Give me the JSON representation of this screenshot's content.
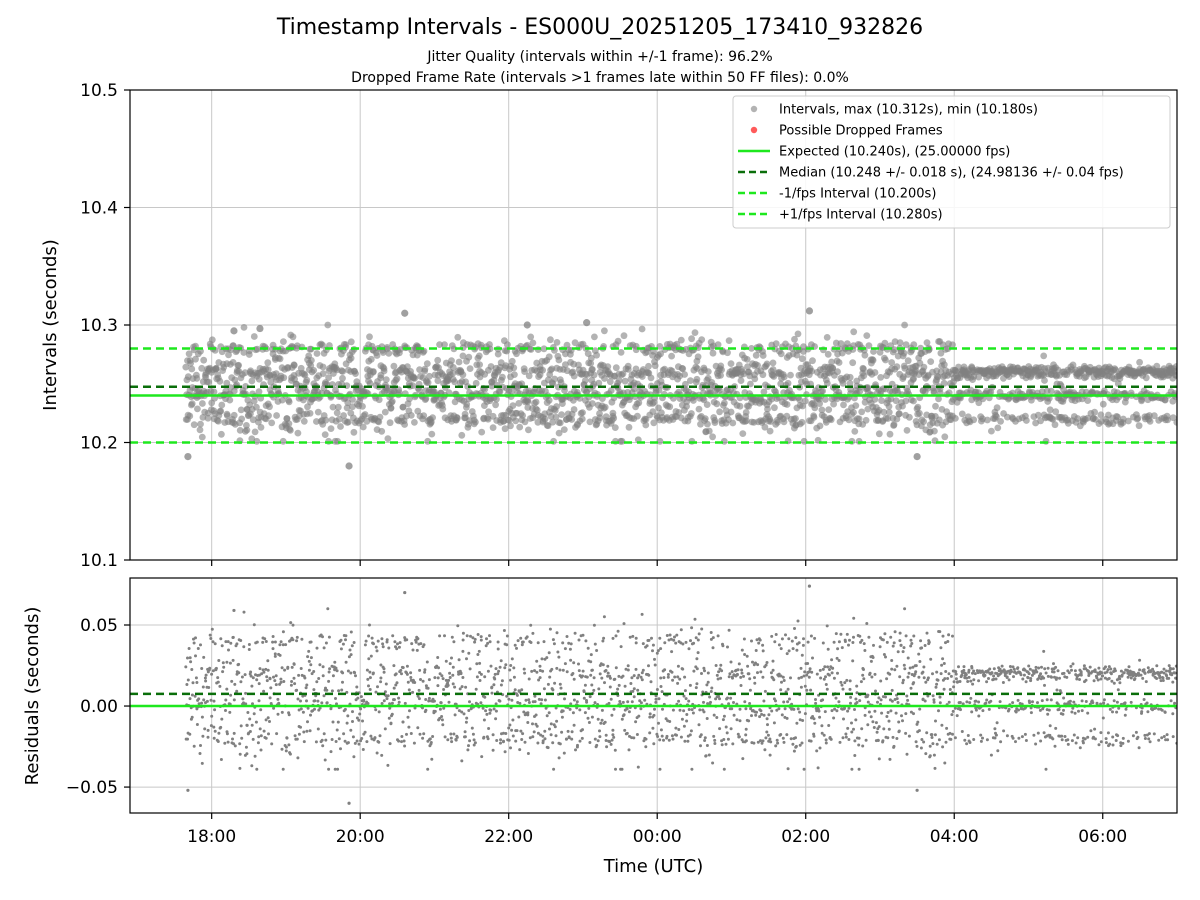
{
  "figure": {
    "title": "Timestamp Intervals - ES000U_20251205_173410_932826",
    "subtitle_jitter": "Jitter Quality (intervals within +/-1 frame): 96.2%",
    "subtitle_dropped": "Dropped Frame Rate (intervals >1 frames late within 50 FF files): 0.0%"
  },
  "colors": {
    "points": "#808080",
    "dropped": "#ff5a5a",
    "expected": "#1ee81e",
    "median": "#0a6e0a",
    "fps_bounds": "#1ee81e",
    "grid": "#c8c8c8"
  },
  "chart_data": [
    {
      "type": "scatter",
      "panel": "intervals",
      "title": "",
      "xlabel": "",
      "ylabel": "Intervals (seconds)",
      "x_unit": "hours since 17:00 UTC",
      "xlim": [
        -0.1,
        14.0
      ],
      "ylim": [
        10.1,
        10.5
      ],
      "yticks": [
        10.1,
        10.2,
        10.3,
        10.4,
        10.5
      ],
      "ytick_labels": [
        "10.1",
        "10.2",
        "10.3",
        "10.4",
        "10.5"
      ],
      "xticks": [
        1,
        3,
        5,
        7,
        9,
        11,
        13
      ],
      "grid": true,
      "legend_position": "top-right",
      "series": [
        {
          "name": "Intervals, max (10.312s), min (10.180s)",
          "kind": "points",
          "x_range": [
            0.65,
            14.0
          ],
          "center": 10.245,
          "spread": 0.024
        },
        {
          "name": "Possible Dropped Frames",
          "kind": "points",
          "values": []
        }
      ],
      "notable_points": [
        {
          "x": 0.68,
          "y": 10.188
        },
        {
          "x": 1.3,
          "y": 10.295
        },
        {
          "x": 1.65,
          "y": 10.297
        },
        {
          "x": 2.85,
          "y": 10.18
        },
        {
          "x": 3.6,
          "y": 10.31
        },
        {
          "x": 5.25,
          "y": 10.3
        },
        {
          "x": 6.05,
          "y": 10.302
        },
        {
          "x": 9.05,
          "y": 10.312
        },
        {
          "x": 10.5,
          "y": 10.188
        }
      ],
      "reference_lines": [
        {
          "label": "Expected (10.240s), (25.00000 fps)",
          "y": 10.24,
          "style": "solid"
        },
        {
          "label": "Median (10.248 +/- 0.018 s), (24.98136 +/- 0.04 fps)",
          "y": 10.2475,
          "style": "dashed"
        },
        {
          "label": "-1/fps Interval (10.200s)",
          "y": 10.2,
          "style": "dashed"
        },
        {
          "label": "+1/fps Interval (10.280s)",
          "y": 10.28,
          "style": "dashed"
        }
      ]
    },
    {
      "type": "scatter",
      "panel": "residuals",
      "title": "",
      "xlabel": "Time (UTC)",
      "ylabel": "Residuals (seconds)",
      "x_unit": "hours since 17:00 UTC",
      "xlim": [
        -0.1,
        14.0
      ],
      "ylim": [
        -0.066,
        0.079
      ],
      "yticks": [
        -0.05,
        0.0,
        0.05
      ],
      "ytick_labels": [
        "−0.05",
        "0.00",
        "0.05"
      ],
      "xticks": [
        1,
        3,
        5,
        7,
        9,
        11,
        13
      ],
      "xtick_labels": [
        "18:00",
        "20:00",
        "22:00",
        "00:00",
        "02:00",
        "04:00",
        "06:00"
      ],
      "grid": true,
      "series": [
        {
          "name": "Residuals",
          "kind": "points",
          "x_range": [
            0.65,
            14.0
          ],
          "center": 0.005,
          "spread": 0.024
        }
      ],
      "notable_points": [
        {
          "x": 0.68,
          "y": -0.052
        },
        {
          "x": 2.85,
          "y": -0.06
        },
        {
          "x": 3.6,
          "y": 0.07
        },
        {
          "x": 9.05,
          "y": 0.074
        },
        {
          "x": 10.5,
          "y": -0.052
        },
        {
          "x": 1.3,
          "y": 0.059
        }
      ],
      "reference_lines": [
        {
          "label": "Expected",
          "y": 0.0,
          "style": "solid"
        },
        {
          "label": "Median",
          "y": 0.0075,
          "style": "dashed"
        }
      ]
    }
  ]
}
